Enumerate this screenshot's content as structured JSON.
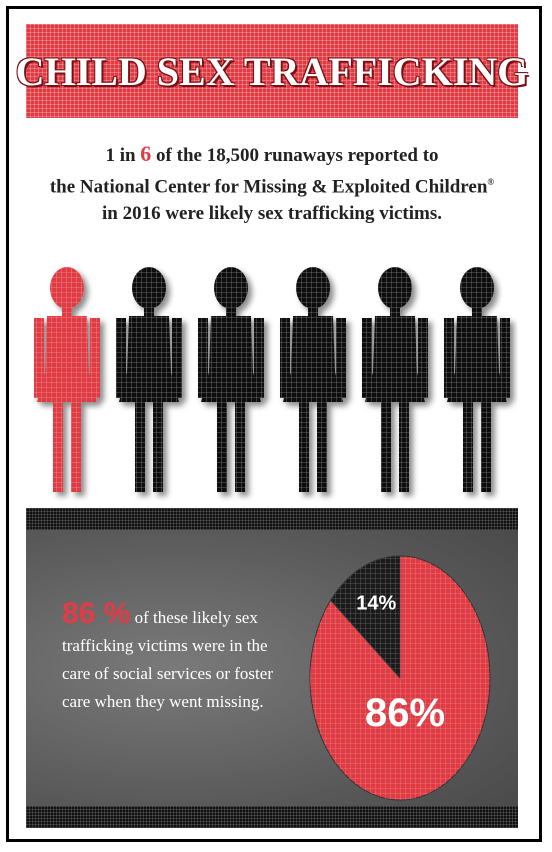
{
  "title": "CHILD SEX TRAFFICKING",
  "stat1": {
    "prefix": "1 in",
    "highlight": "6",
    "line1_rest": "of the 18,500 runaways reported to",
    "line2": "the National Center for Missing & Exploited Children",
    "line2_mark": "®",
    "line3": "in 2016 were likely sex trafficking victims."
  },
  "pictogram": {
    "total": 6,
    "highlighted": 1,
    "highlight_color": "#e03a43",
    "base_color": "#111111"
  },
  "stat2": {
    "big": "86 %",
    "text": "of these likely sex trafficking victims were in the care of social services or foster care when they went missing."
  },
  "colors": {
    "red": "#e03a43",
    "black": "#111111",
    "gray_panel": "#5f5f5f"
  },
  "chart_data": {
    "type": "pie",
    "slices": [
      {
        "label": "86%",
        "value": 86,
        "color": "#e03a43"
      },
      {
        "label": "14%",
        "value": 14,
        "color": "#1a1a1a"
      }
    ]
  }
}
